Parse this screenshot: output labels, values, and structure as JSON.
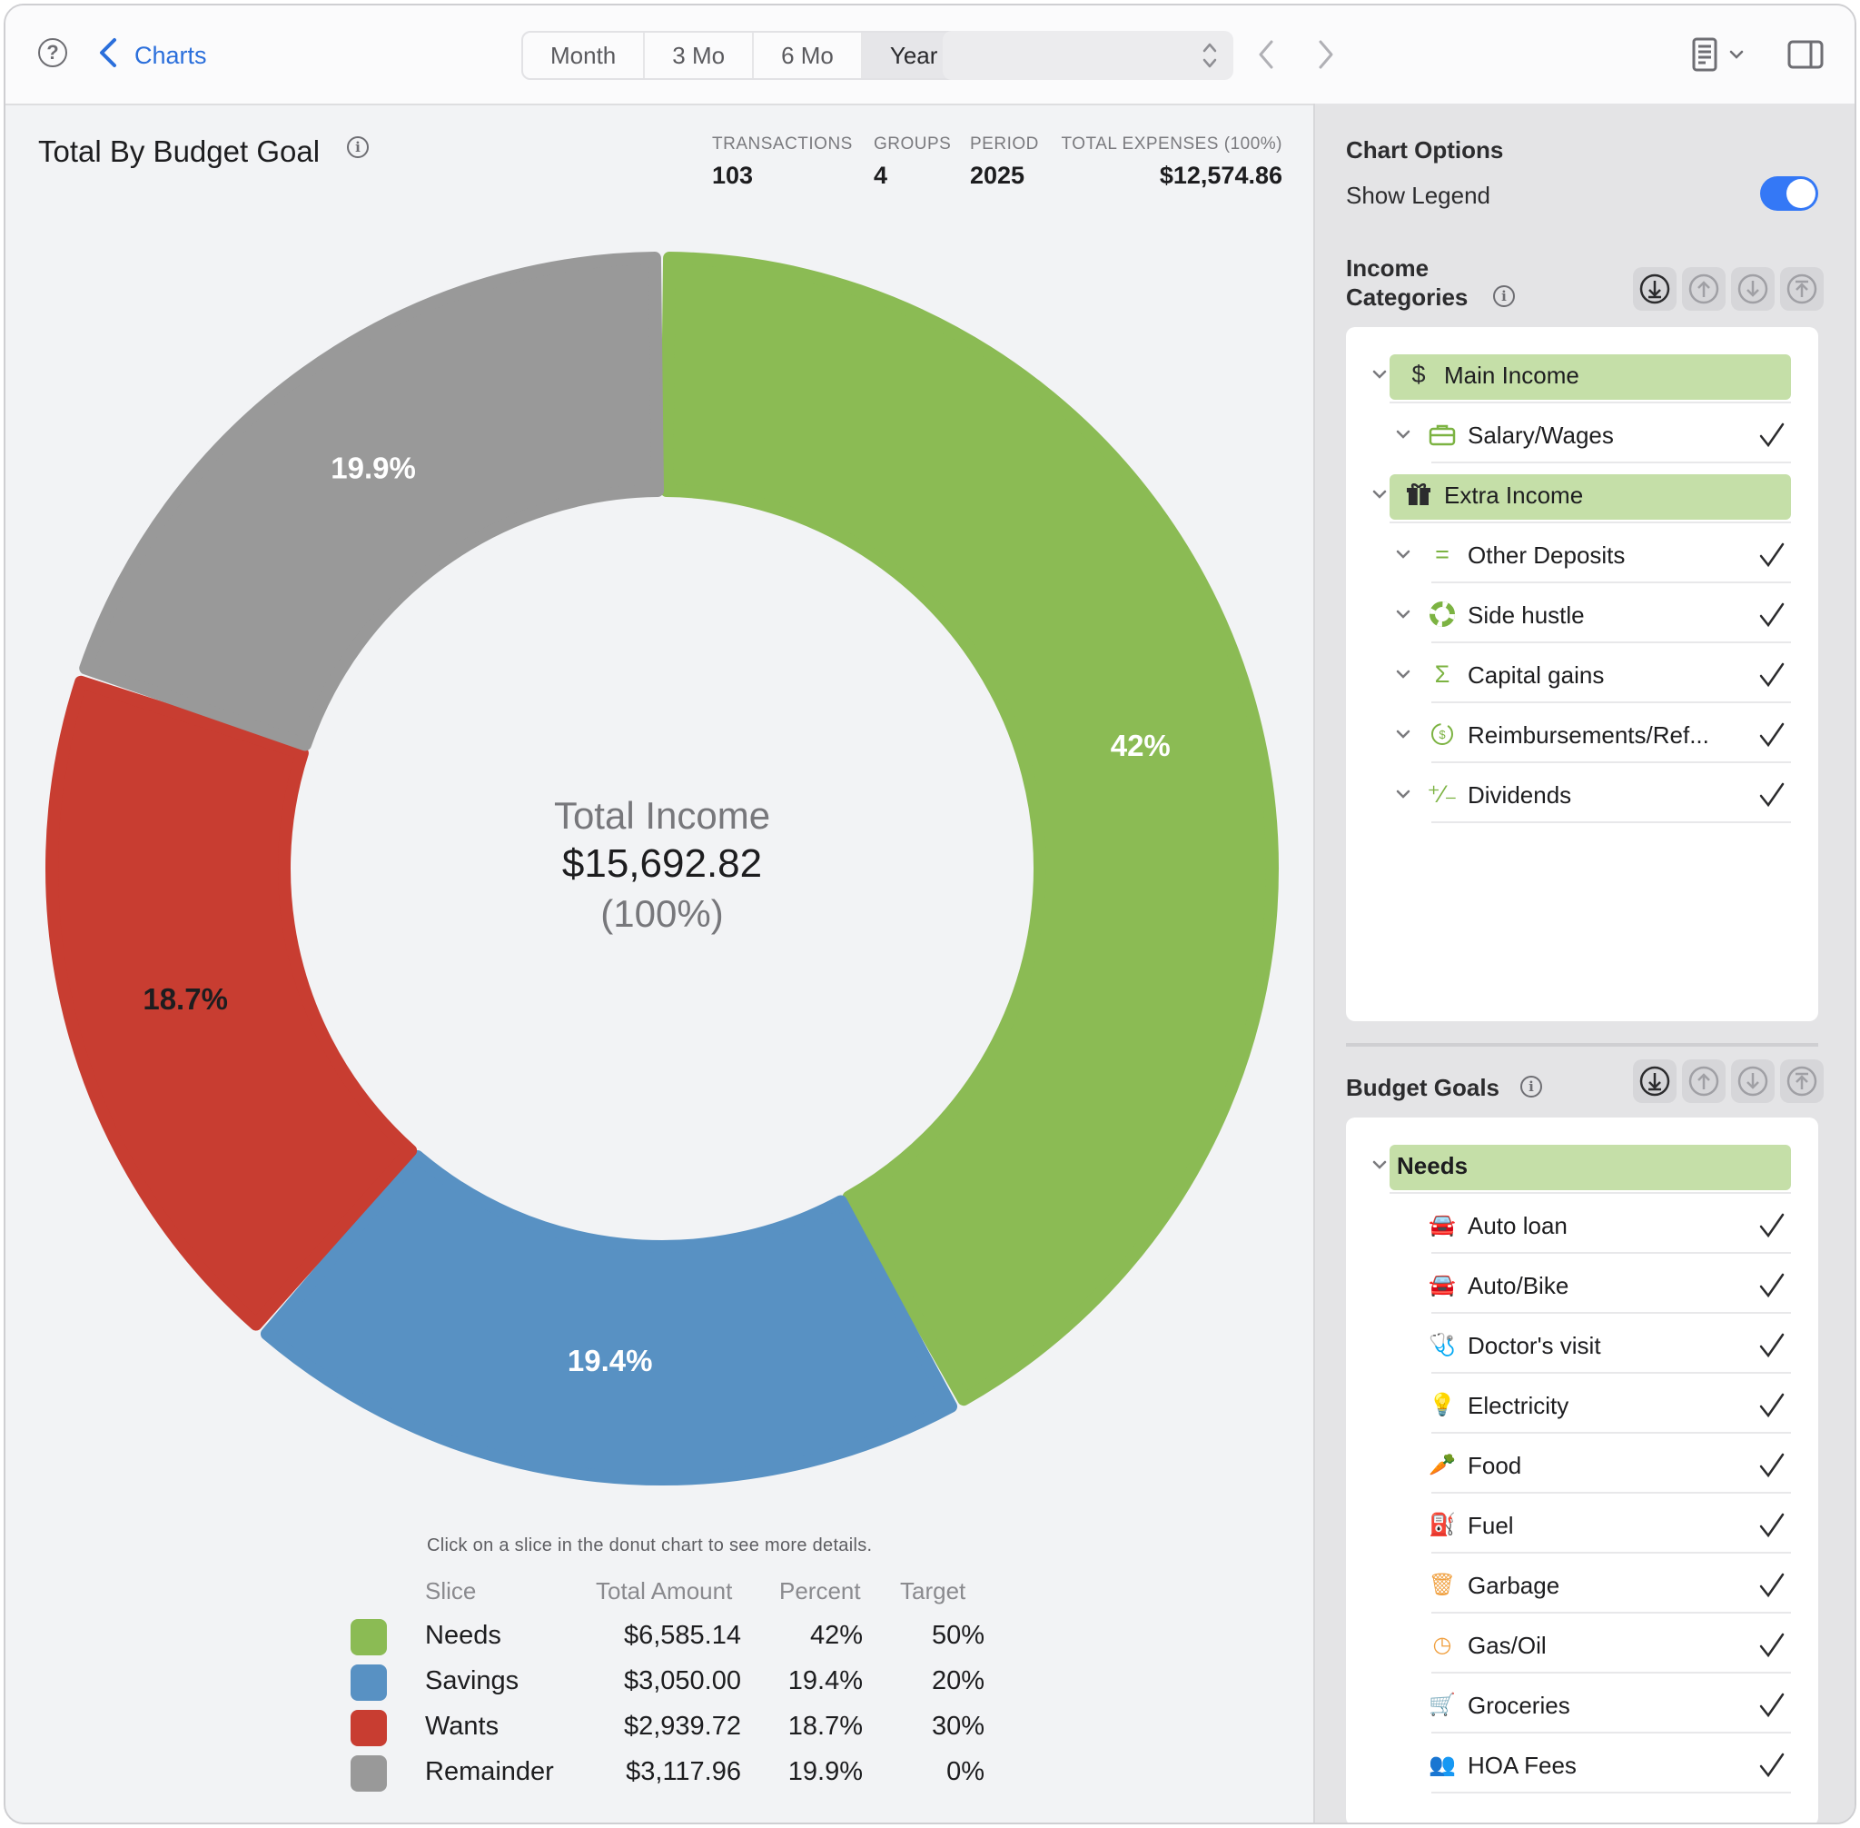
{
  "toolbar": {
    "back_label": "Charts",
    "segments": [
      "Month",
      "3 Mo",
      "6 Mo",
      "Year"
    ],
    "selected_segment": "Year",
    "period_select_value": ""
  },
  "main": {
    "title": "Total By Budget Goal",
    "stats": [
      {
        "label": "TRANSACTIONS",
        "value": "103"
      },
      {
        "label": "GROUPS",
        "value": "4"
      },
      {
        "label": "PERIOD",
        "value": "2025"
      },
      {
        "label": "TOTAL EXPENSES (100%)",
        "value": "$12,574.86"
      }
    ],
    "center": {
      "line1": "Total Income",
      "line2": "$15,692.82",
      "line3": "(100%)"
    },
    "hint": "Click on a slice in the donut chart to see more details.",
    "legend_headers": {
      "slice": "Slice",
      "total": "Total Amount",
      "percent": "Percent",
      "target": "Target"
    },
    "legend_rows": [
      {
        "slice": "Needs",
        "total": "$6,585.14",
        "percent": "42%",
        "target": "50%",
        "color": "#8bbb54"
      },
      {
        "slice": "Savings",
        "total": "$3,050.00",
        "percent": "19.4%",
        "target": "20%",
        "color": "#5891c3"
      },
      {
        "slice": "Wants",
        "total": "$2,939.72",
        "percent": "18.7%",
        "target": "30%",
        "color": "#c83d31"
      },
      {
        "slice": "Remainder",
        "total": "$3,117.96",
        "percent": "19.9%",
        "target": "0%",
        "color": "#999999"
      }
    ]
  },
  "chart_data": {
    "type": "pie",
    "categories": [
      "Needs",
      "Savings",
      "Wants",
      "Remainder"
    ],
    "values": [
      6585.14,
      3050.0,
      2939.72,
      3117.96
    ],
    "labels": [
      "42%",
      "19.4%",
      "18.7%",
      "19.9%"
    ],
    "colors": [
      "#8bbb54",
      "#5891c3",
      "#c83d31",
      "#999999"
    ],
    "label_colors": [
      "#ffffff",
      "#ffffff",
      "#1d1d1f",
      "#ffffff"
    ],
    "donut": true,
    "legend": "bottom"
  },
  "options": {
    "heading": "Chart Options",
    "show_legend_label": "Show Legend",
    "show_legend": true
  },
  "income": {
    "heading_line1": "Income",
    "heading_line2": "Categories",
    "items": [
      {
        "label": "Main Income",
        "group": true,
        "icon": "dollar-icon",
        "glyph": "$"
      },
      {
        "label": "Salary/Wages",
        "group": false,
        "icon": "briefcase-icon",
        "glyph": ""
      },
      {
        "label": "Extra Income",
        "group": true,
        "icon": "gift-icon",
        "glyph": ""
      },
      {
        "label": "Other Deposits",
        "group": false,
        "icon": "equals-icon",
        "glyph": "="
      },
      {
        "label": "Side hustle",
        "group": false,
        "icon": "lifebuoy-icon",
        "glyph": ""
      },
      {
        "label": "Capital gains",
        "group": false,
        "icon": "sigma-icon",
        "glyph": "Σ"
      },
      {
        "label": "Reimbursements/Ref...",
        "group": false,
        "icon": "refund-icon",
        "glyph": ""
      },
      {
        "label": "Dividends",
        "group": false,
        "icon": "percent-icon",
        "glyph": "⁺⁄₋"
      }
    ]
  },
  "budget": {
    "heading": "Budget Goals",
    "items": [
      {
        "label": "Needs",
        "group": true,
        "icon": "",
        "glyph": ""
      },
      {
        "label": "Auto loan",
        "group": false,
        "icon": "car-icon",
        "glyph": "🚘"
      },
      {
        "label": "Auto/Bike",
        "group": false,
        "icon": "car-icon",
        "glyph": "🚘"
      },
      {
        "label": "Doctor's visit",
        "group": false,
        "icon": "stethoscope-icon",
        "glyph": "🩺"
      },
      {
        "label": "Electricity",
        "group": false,
        "icon": "lightbulb-icon",
        "glyph": "💡"
      },
      {
        "label": "Food",
        "group": false,
        "icon": "carrot-icon",
        "glyph": "🥕"
      },
      {
        "label": "Fuel",
        "group": false,
        "icon": "fuel-pump-icon",
        "glyph": "⛽"
      },
      {
        "label": "Garbage",
        "group": false,
        "icon": "trash-icon",
        "glyph": "🗑"
      },
      {
        "label": "Gas/Oil",
        "group": false,
        "icon": "gauge-icon",
        "glyph": "◷"
      },
      {
        "label": "Groceries",
        "group": false,
        "icon": "cart-icon",
        "glyph": "🛒"
      },
      {
        "label": "HOA Fees",
        "group": false,
        "icon": "people-icon",
        "glyph": "👥"
      }
    ]
  }
}
